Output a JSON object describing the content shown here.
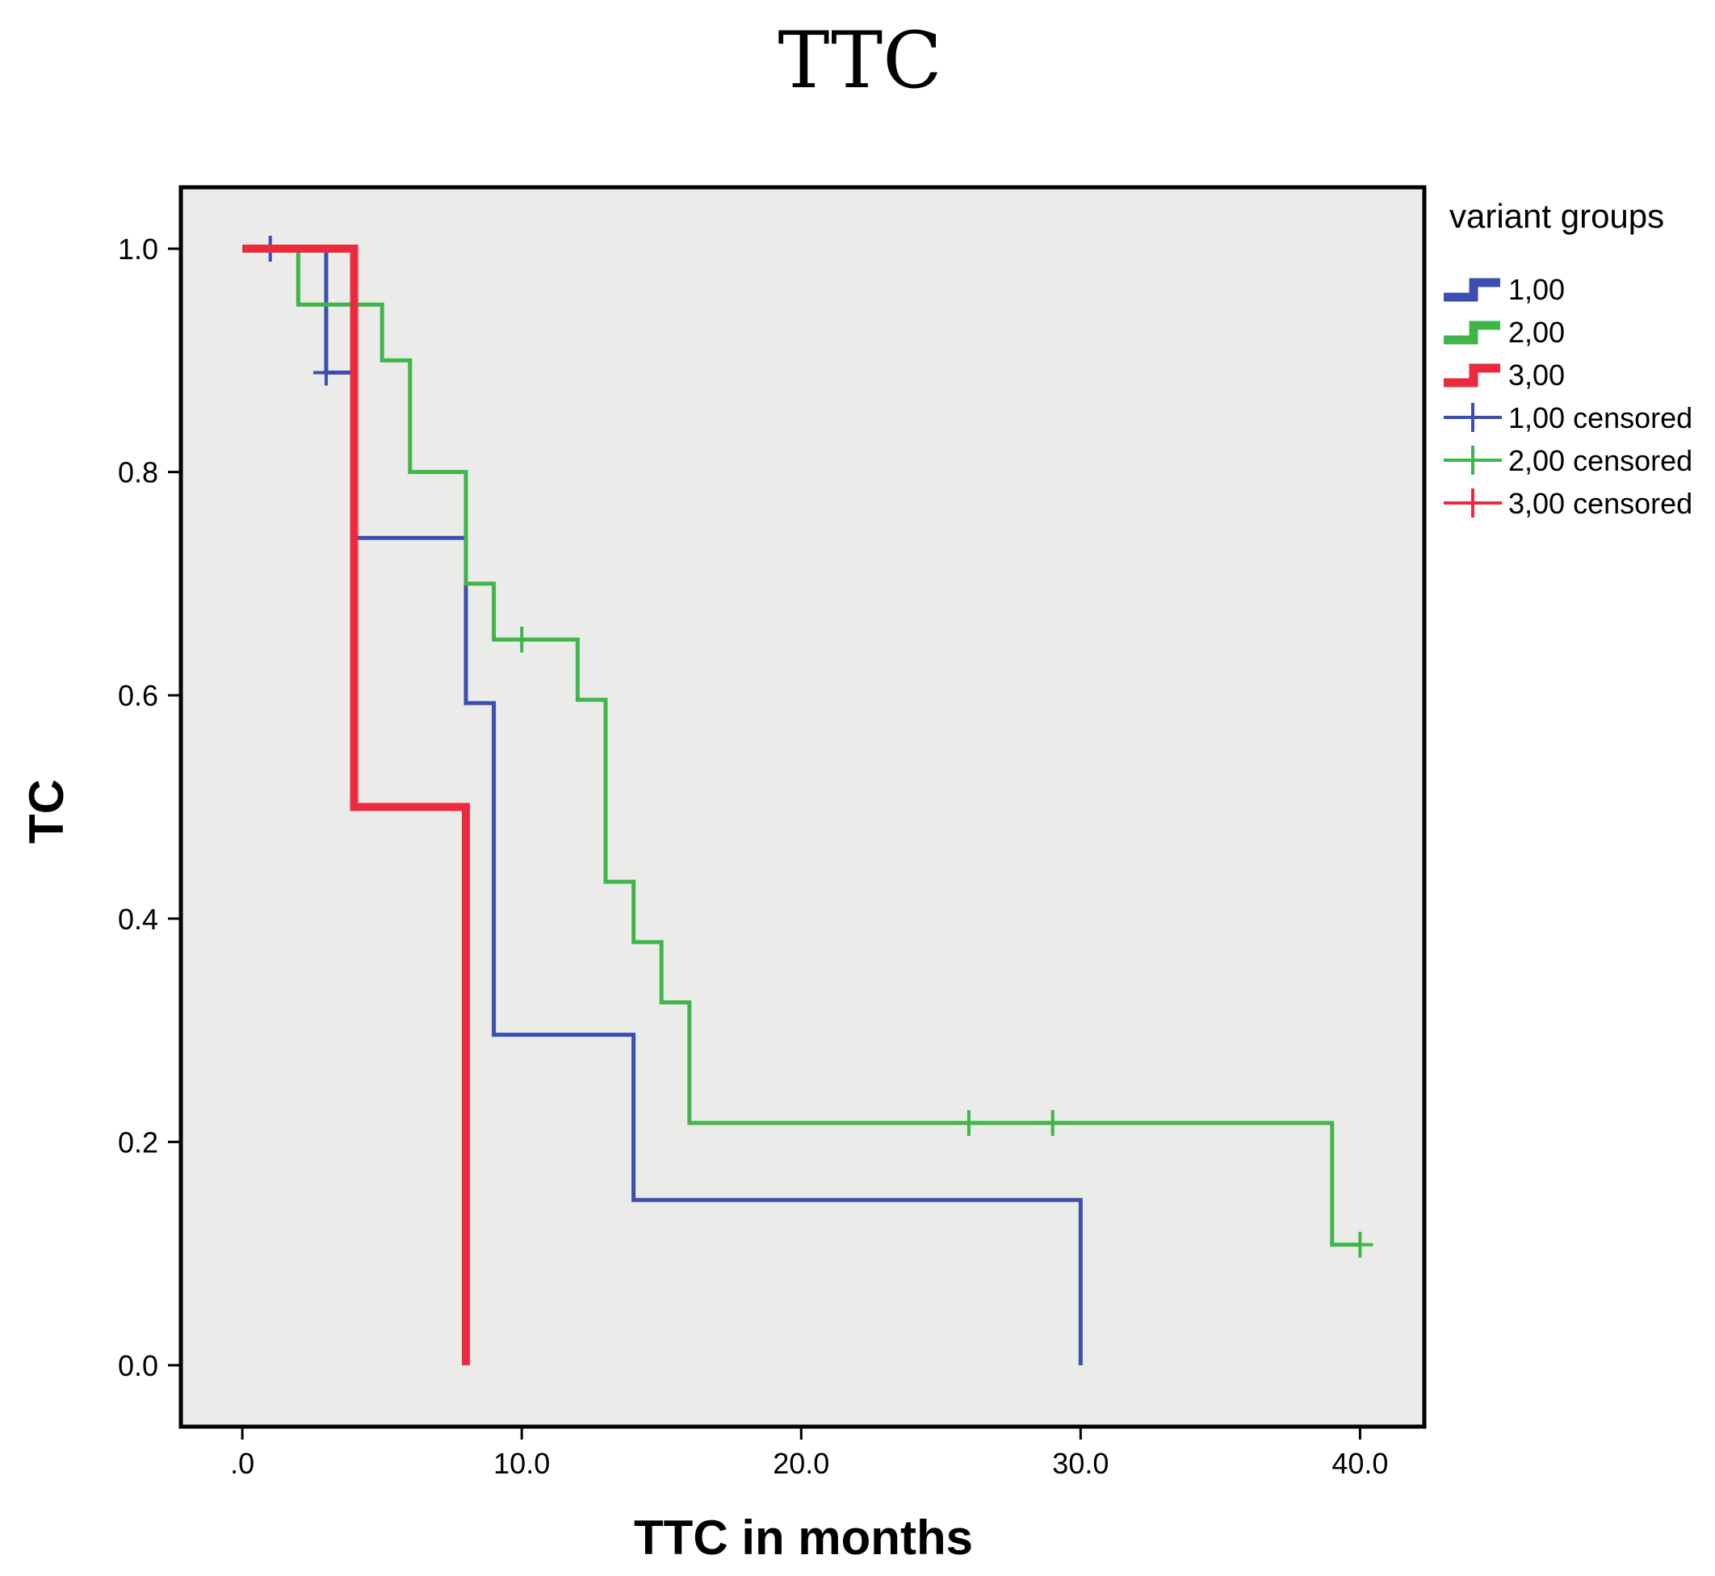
{
  "chart_data": {
    "type": "line",
    "subtype": "kaplan-meier step curve",
    "title": "TTC",
    "xlabel": "TTC in months",
    "ylabel": "TC",
    "xlim": [
      -2.2,
      42.3
    ],
    "ylim": [
      -0.055,
      1.055
    ],
    "xticks": [
      0,
      10,
      20,
      30,
      40
    ],
    "xtick_labels": [
      ".0",
      "10.0",
      "20.0",
      "30.0",
      "40.0"
    ],
    "yticks": [
      0.0,
      0.2,
      0.4,
      0.6,
      0.8,
      1.0
    ],
    "ytick_labels": [
      "0.0",
      "0.2",
      "0.4",
      "0.6",
      "0.8",
      "1.0"
    ],
    "plot_background": "#ebebea",
    "legend": {
      "title": "variant groups",
      "placement": "right",
      "entries": [
        {
          "label": "1,00",
          "kind": "line",
          "color": "#3c4fb0"
        },
        {
          "label": "2,00",
          "kind": "line",
          "color": "#3fb54a"
        },
        {
          "label": "3,00",
          "kind": "line",
          "color": "#ec2a3e"
        },
        {
          "label": "1,00 censored",
          "kind": "censor",
          "color": "#3c4fb0"
        },
        {
          "label": "2,00 censored",
          "kind": "censor",
          "color": "#3fb54a"
        },
        {
          "label": "3,00 censored",
          "kind": "censor",
          "color": "#ec2a3e"
        }
      ]
    },
    "series": [
      {
        "name": "1,00",
        "color": "#3c4fb0",
        "line": "thin",
        "steps": [
          [
            0,
            1.0
          ],
          [
            3,
            0.889
          ],
          [
            4,
            0.741
          ],
          [
            8,
            0.593
          ],
          [
            9,
            0.296
          ],
          [
            14,
            0.148
          ],
          [
            30,
            0.0
          ]
        ],
        "end": 30,
        "censored": [
          [
            1,
            1.0
          ],
          [
            3,
            0.889
          ]
        ]
      },
      {
        "name": "2,00",
        "color": "#3fb54a",
        "line": "thin",
        "steps": [
          [
            0,
            1.0
          ],
          [
            2,
            0.95
          ],
          [
            5,
            0.9
          ],
          [
            6,
            0.8
          ],
          [
            8,
            0.7
          ],
          [
            9,
            0.65
          ],
          [
            12,
            0.596
          ],
          [
            13,
            0.433
          ],
          [
            14,
            0.379
          ],
          [
            15,
            0.325
          ],
          [
            16,
            0.217
          ],
          [
            39,
            0.108
          ]
        ],
        "end": 40,
        "censored": [
          [
            10,
            0.65
          ],
          [
            26,
            0.217
          ],
          [
            29,
            0.217
          ],
          [
            40,
            0.108
          ]
        ]
      },
      {
        "name": "3,00",
        "color": "#ec2a3e",
        "line": "thick",
        "steps": [
          [
            0,
            1.0
          ],
          [
            4,
            0.5
          ],
          [
            8,
            0.0
          ]
        ],
        "end": 8,
        "censored": []
      }
    ]
  }
}
